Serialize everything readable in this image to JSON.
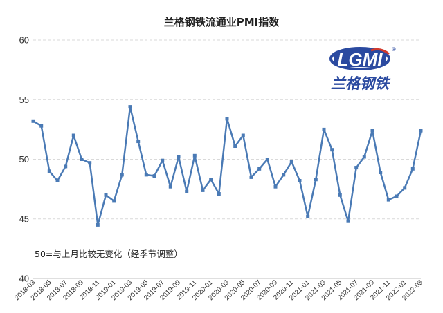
{
  "chart_data": {
    "type": "line",
    "title": "兰格钢铁流通业PMI指数",
    "note": "50=与上月比较无变化（经季节调整）",
    "xlabel": "",
    "ylabel": "",
    "ylim": [
      40,
      60
    ],
    "yticks": [
      "40",
      "45",
      "50",
      "55",
      "60"
    ],
    "grid": "horizontal-dashed",
    "line_color": "#4a7ab5",
    "x": [
      "2018-03",
      "2018-04",
      "2018-05",
      "2018-06",
      "2018-07",
      "2018-08",
      "2018-09",
      "2018-10",
      "2018-11",
      "2018-12",
      "2019-01",
      "2019-02",
      "2019-03",
      "2019-04",
      "2019-05",
      "2019-06",
      "2019-07",
      "2019-08",
      "2019-09",
      "2019-10",
      "2019-11",
      "2019-12",
      "2020-01",
      "2020-02",
      "2020-03",
      "2020-04",
      "2020-05",
      "2020-06",
      "2020-07",
      "2020-08",
      "2020-09",
      "2020-10",
      "2020-11",
      "2020-12",
      "2021-01",
      "2021-02",
      "2021-03",
      "2021-04",
      "2021-05",
      "2021-06",
      "2021-07",
      "2021-08",
      "2021-09",
      "2021-10",
      "2021-11",
      "2021-12",
      "2022-01",
      "2022-02",
      "2022-03"
    ],
    "xtick_labels": [
      "2018-03",
      "2018-05",
      "2018-07",
      "2018-09",
      "2018-11",
      "2019-01",
      "2019-03",
      "2019-05",
      "2019-07",
      "2019-09",
      "2019-11",
      "2020-01",
      "2020-03",
      "2020-05",
      "2020-07",
      "2020-09",
      "2020-11",
      "2021-01",
      "2021-03",
      "2021-05",
      "2021-07",
      "2021-09",
      "2021-11",
      "2022-01",
      "2022-03"
    ],
    "values": [
      53.2,
      52.8,
      49.0,
      48.2,
      49.4,
      52.0,
      50.0,
      49.7,
      44.5,
      47.0,
      46.5,
      48.7,
      54.4,
      51.5,
      48.7,
      48.6,
      49.9,
      47.7,
      50.2,
      47.3,
      50.3,
      47.4,
      48.3,
      47.1,
      53.4,
      51.1,
      52.0,
      48.5,
      49.2,
      50.0,
      47.7,
      48.7,
      49.8,
      48.2,
      45.2,
      48.3,
      52.5,
      50.8,
      47.0,
      44.8,
      49.3,
      50.2,
      52.4,
      48.9,
      46.6,
      46.9,
      47.6,
      49.2,
      52.4
    ]
  },
  "logo": {
    "latin": "LGMI",
    "reg": "®",
    "cn": "兰格钢铁",
    "ring_color": "#2b4aa0",
    "accent_color": "#d33a2c"
  }
}
